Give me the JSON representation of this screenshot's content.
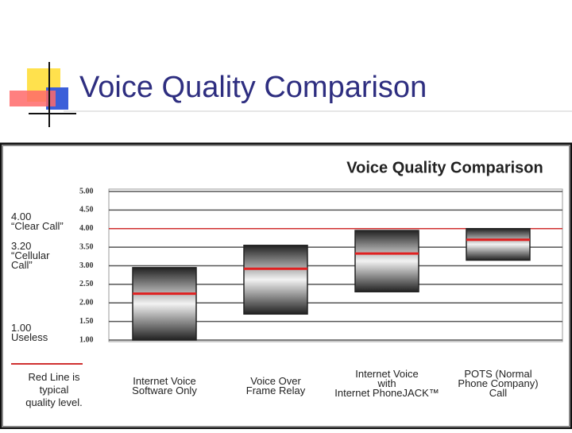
{
  "slide_title": "Voice Quality Comparison",
  "chart_data": {
    "type": "floating-box",
    "title": "Voice Quality Comparison",
    "categories": [
      "Internet Voice\nSoftware Only",
      "Voice Over\nFrame Relay",
      "Internet Voice\nwith\nInternet PhoneJACK™",
      "POTS (Normal\nPhone Company)\nCall"
    ],
    "ranges": [
      [
        1.0,
        2.95
      ],
      [
        1.7,
        3.55
      ],
      [
        2.3,
        3.95
      ],
      [
        3.15,
        4.0
      ]
    ],
    "typical": [
      2.25,
      2.92,
      3.33,
      3.7
    ],
    "reference_line": 4.0,
    "reference_color": "#d03030",
    "typical_color": "#e02020",
    "ylim": [
      1.0,
      5.0
    ],
    "yticks": [
      {
        "value": 1,
        "label": "1.00"
      },
      {
        "value": 1.5,
        "label": "1.50"
      },
      {
        "value": 2,
        "label": "2.00"
      },
      {
        "value": 2.5,
        "label": "2.50"
      },
      {
        "value": 3,
        "label": "3.00"
      },
      {
        "value": 3.5,
        "label": "3.50"
      },
      {
        "value": 4,
        "label": "4.00"
      },
      {
        "value": 4.5,
        "label": "4.50"
      },
      {
        "value": 5,
        "label": "5.00"
      }
    ],
    "grid": true,
    "annotations": [
      {
        "value": 4.0,
        "lines": [
          "4.00",
          "“Clear Call”"
        ]
      },
      {
        "value": 3.2,
        "lines": [
          "3.20",
          "“Cellular",
          "Call”"
        ]
      },
      {
        "value": 1.0,
        "lines": [
          "1.00",
          "Useless"
        ]
      }
    ],
    "legend_note": [
      "Red Line is",
      "typical",
      "quality level."
    ]
  }
}
